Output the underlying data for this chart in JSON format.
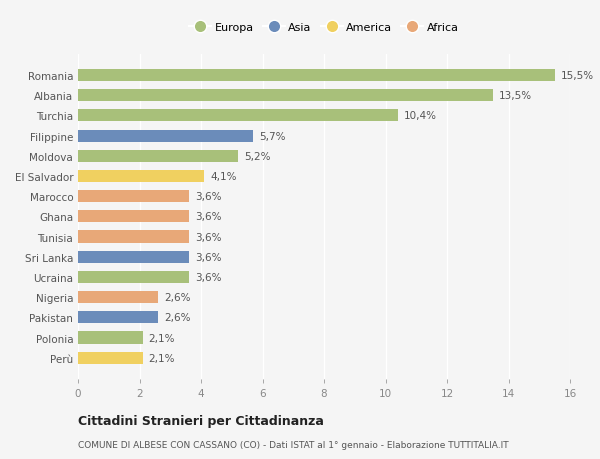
{
  "countries": [
    "Romania",
    "Albania",
    "Turchia",
    "Filippine",
    "Moldova",
    "El Salvador",
    "Marocco",
    "Ghana",
    "Tunisia",
    "Sri Lanka",
    "Ucraina",
    "Nigeria",
    "Pakistan",
    "Polonia",
    "Perù"
  ],
  "values": [
    15.5,
    13.5,
    10.4,
    5.7,
    5.2,
    4.1,
    3.6,
    3.6,
    3.6,
    3.6,
    3.6,
    2.6,
    2.6,
    2.1,
    2.1
  ],
  "labels": [
    "15,5%",
    "13,5%",
    "10,4%",
    "5,7%",
    "5,2%",
    "4,1%",
    "3,6%",
    "3,6%",
    "3,6%",
    "3,6%",
    "3,6%",
    "2,6%",
    "2,6%",
    "2,1%",
    "2,1%"
  ],
  "continents": [
    "Europa",
    "Europa",
    "Europa",
    "Asia",
    "Europa",
    "America",
    "Africa",
    "Africa",
    "Africa",
    "Asia",
    "Europa",
    "Africa",
    "Asia",
    "Europa",
    "America"
  ],
  "colors": {
    "Europa": "#a8c07a",
    "Asia": "#6b8cba",
    "America": "#f0d060",
    "Africa": "#e8a878"
  },
  "legend_order": [
    "Europa",
    "Asia",
    "America",
    "Africa"
  ],
  "xlim": [
    0,
    16
  ],
  "xticks": [
    0,
    2,
    4,
    6,
    8,
    10,
    12,
    14,
    16
  ],
  "title": "Cittadini Stranieri per Cittadinanza",
  "subtitle": "COMUNE DI ALBESE CON CASSANO (CO) - Dati ISTAT al 1° gennaio - Elaborazione TUTTITALIA.IT",
  "bg_color": "#f5f5f5",
  "bar_height": 0.6,
  "label_fontsize": 7.5,
  "ytick_fontsize": 7.5,
  "xtick_fontsize": 7.5,
  "title_fontsize": 9,
  "subtitle_fontsize": 6.5,
  "legend_fontsize": 8
}
